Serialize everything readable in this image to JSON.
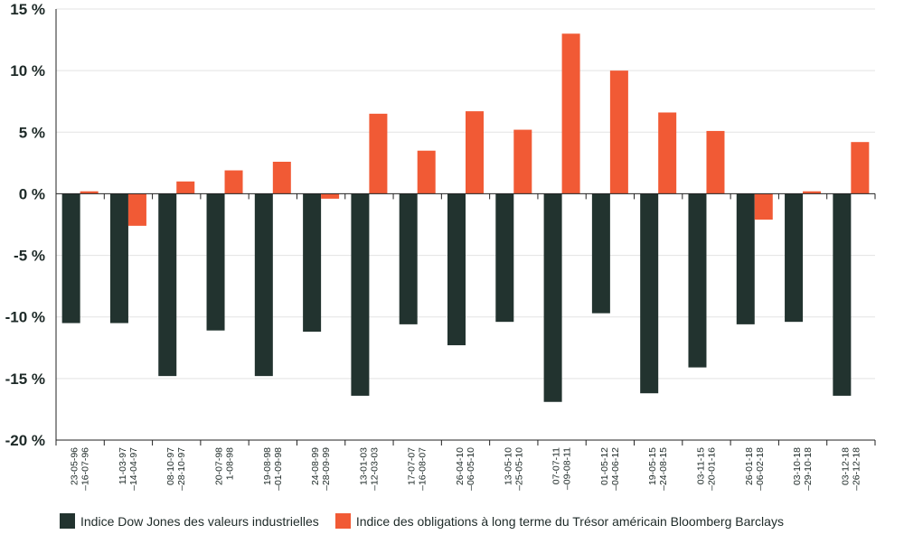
{
  "chart_data": {
    "type": "bar",
    "categories": [
      [
        "23-05-96",
        "–16-07-96"
      ],
      [
        "11-03-97",
        "–14-04-97"
      ],
      [
        "08-10-97",
        "–28-10-97"
      ],
      [
        "20-07-98",
        "1-08-98"
      ],
      [
        "19-08-98",
        "–01-09-98"
      ],
      [
        "24-08-99",
        "–28-09-99"
      ],
      [
        "13-01-03",
        "–12-03-03"
      ],
      [
        "17-07-07",
        "–16-08-07"
      ],
      [
        "26-04-10",
        "–06-05-10"
      ],
      [
        "13-05-10",
        "–25-05-10"
      ],
      [
        "07-07-11",
        "–09-08-11"
      ],
      [
        "01-05-12",
        "–04-06-12"
      ],
      [
        "19-05-15",
        "–24-08-15"
      ],
      [
        "03-11-15",
        "–20-01-16"
      ],
      [
        "26-01-18",
        "–06-02-18"
      ],
      [
        "03-10-18",
        "–29-10-18"
      ],
      [
        "03-12-18",
        "–26-12-18"
      ]
    ],
    "series": [
      {
        "name": "Indice Dow Jones des valeurs industrielles",
        "color": "#22332f",
        "values": [
          -10.5,
          -10.5,
          -14.8,
          -11.1,
          -14.8,
          -11.2,
          -16.4,
          -10.6,
          -12.3,
          -10.4,
          -16.9,
          -9.7,
          -16.2,
          -14.1,
          -10.6,
          -10.4,
          -16.4
        ]
      },
      {
        "name": "Indice des obligations à long terme du Trésor américain Bloomberg Barclays",
        "color": "#f15a35",
        "values": [
          0.2,
          -2.6,
          1.0,
          1.9,
          2.6,
          -0.4,
          6.5,
          3.5,
          6.7,
          5.2,
          13.0,
          10.0,
          6.6,
          5.1,
          -2.1,
          0.2,
          4.2
        ]
      }
    ],
    "y_ticks": [
      {
        "value": 15,
        "label": "15 %"
      },
      {
        "value": 10,
        "label": "10 %"
      },
      {
        "value": 5,
        "label": "5 %"
      },
      {
        "value": 0,
        "label": "0 %"
      },
      {
        "value": -5,
        "label": "-5 %"
      },
      {
        "value": -10,
        "label": "-10 %"
      },
      {
        "value": -15,
        "label": "-15 %"
      },
      {
        "value": -20,
        "label": "-20 %"
      }
    ],
    "ylim": [
      -20,
      15
    ],
    "grid": true,
    "legend_position": "bottom-left",
    "title": "",
    "xlabel": "",
    "ylabel": ""
  }
}
